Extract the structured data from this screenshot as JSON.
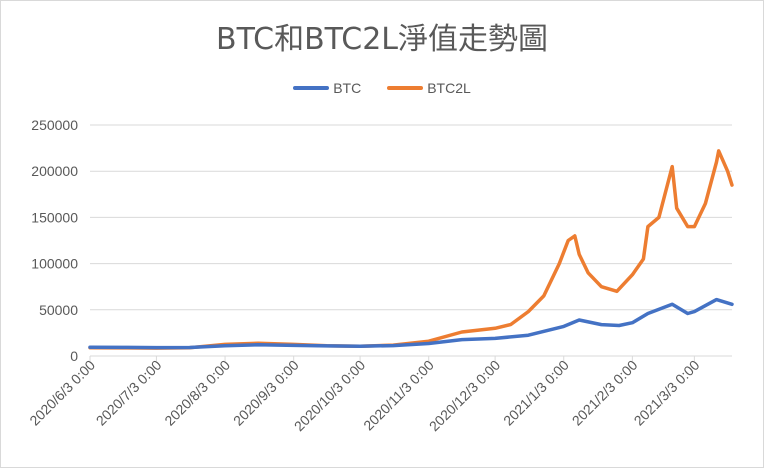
{
  "chart_data": {
    "type": "line",
    "title": "BTC和BTC2L淨值走勢圖",
    "xlabel": "",
    "ylabel": "",
    "ylim": [
      0,
      250000
    ],
    "yticks": [
      "0",
      "50000",
      "100000",
      "150000",
      "200000",
      "250000"
    ],
    "x_tick_labels": [
      "2020/6/3 0:00",
      "2020/7/3 0:00",
      "2020/8/3 0:00",
      "2020/9/3 0:00",
      "2020/10/3 0:00",
      "2020/11/3 0:00",
      "2020/12/3 0:00",
      "2021/1/3 0:00",
      "2021/2/3 0:00",
      "2021/3/3 0:00"
    ],
    "grid": true,
    "legend_position": "top",
    "series": [
      {
        "name": "BTC",
        "color": "#4472C4",
        "x": [
          "2020-06-03",
          "2020-06-18",
          "2020-07-03",
          "2020-07-18",
          "2020-08-03",
          "2020-08-18",
          "2020-09-03",
          "2020-09-18",
          "2020-10-03",
          "2020-10-18",
          "2020-11-03",
          "2020-11-18",
          "2020-12-03",
          "2020-12-18",
          "2021-01-03",
          "2021-01-10",
          "2021-01-20",
          "2021-01-28",
          "2021-02-03",
          "2021-02-10",
          "2021-02-21",
          "2021-02-28",
          "2021-03-03",
          "2021-03-13",
          "2021-03-20"
        ],
        "values": [
          9500,
          9300,
          9100,
          9200,
          11200,
          12100,
          11500,
          10900,
          10600,
          11300,
          13500,
          17800,
          19100,
          22500,
          32000,
          39000,
          34000,
          33000,
          36000,
          46000,
          56000,
          46000,
          48000,
          61000,
          56000
        ]
      },
      {
        "name": "BTC2L",
        "color": "#ED7D31",
        "x": [
          "2020-06-03",
          "2020-06-18",
          "2020-07-03",
          "2020-07-18",
          "2020-08-03",
          "2020-08-18",
          "2020-09-03",
          "2020-09-18",
          "2020-10-03",
          "2020-10-18",
          "2020-11-03",
          "2020-11-18",
          "2020-12-03",
          "2020-12-10",
          "2020-12-18",
          "2020-12-25",
          "2021-01-01",
          "2021-01-05",
          "2021-01-08",
          "2021-01-10",
          "2021-01-14",
          "2021-01-20",
          "2021-01-27",
          "2021-02-03",
          "2021-02-08",
          "2021-02-10",
          "2021-02-15",
          "2021-02-21",
          "2021-02-23",
          "2021-02-28",
          "2021-03-03",
          "2021-03-08",
          "2021-03-13",
          "2021-03-14",
          "2021-03-18",
          "2021-03-20"
        ],
        "values": [
          9000,
          8800,
          8600,
          8900,
          12500,
          13800,
          12500,
          11000,
          10500,
          11800,
          16000,
          26000,
          30000,
          34000,
          48000,
          65000,
          100000,
          125000,
          130000,
          110000,
          90000,
          75000,
          70000,
          88000,
          105000,
          140000,
          150000,
          205000,
          160000,
          140000,
          140000,
          165000,
          210000,
          222000,
          200000,
          185000
        ]
      }
    ]
  }
}
